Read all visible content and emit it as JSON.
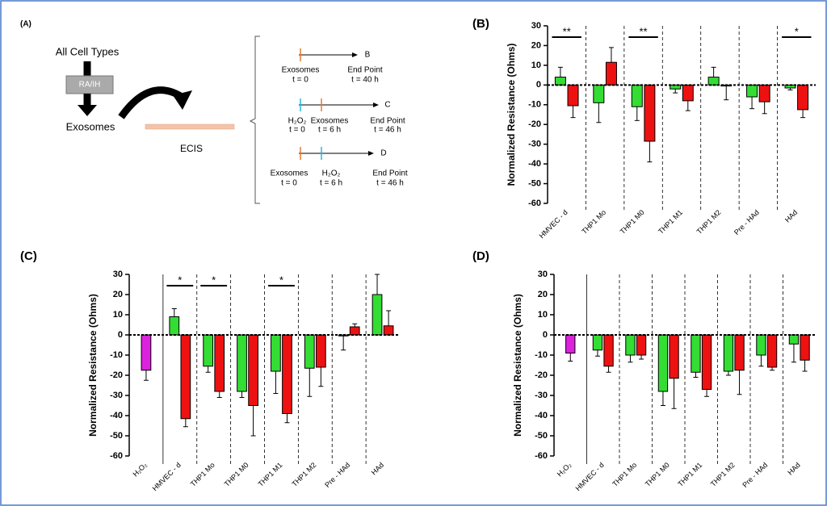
{
  "panel_a": {
    "label": "(A)",
    "source": "All Cell Types",
    "treatment": "RA/IH",
    "product": "Exosomes",
    "assay": "ECIS",
    "timelines": [
      {
        "target": "B",
        "events": [
          {
            "name": "Exosomes",
            "time": "t = 0"
          }
        ],
        "end": "End Point",
        "end_time": "t = 40 h"
      },
      {
        "target": "C",
        "events": [
          {
            "name": "H₂O₂",
            "time": "t = 0"
          },
          {
            "name": "Exosomes",
            "time": "t = 6 h"
          }
        ],
        "end": "End Point",
        "end_time": "t = 46 h"
      },
      {
        "target": "D",
        "events": [
          {
            "name": "Exosomes",
            "time": "t = 0"
          },
          {
            "name": "H₂O₂",
            "time": "t = 6 h"
          }
        ],
        "end": "End Point",
        "end_time": "t = 46 h"
      }
    ]
  },
  "chart_data": [
    {
      "type": "bar",
      "panel_label": "(B)",
      "y_label": "Normalized Resistance (Ohms)",
      "categories": [
        "HMVEC - d",
        "THP1 Mo",
        "THP1 M0",
        "THP1 M1",
        "THP1 M2",
        "Pre - HAd",
        "HAd"
      ],
      "series": [
        {
          "color": "#33dd33",
          "values": [
            4,
            -9,
            -11,
            -2,
            4,
            -6,
            -1.5
          ],
          "errors": [
            5,
            10,
            7,
            2,
            5,
            6,
            1
          ]
        },
        {
          "color": "#ee1111",
          "values": [
            -10.5,
            11.5,
            -28.5,
            -8,
            -0.5,
            -8.5,
            -12.5
          ],
          "errors": [
            6,
            7.5,
            10.5,
            5,
            7,
            6,
            4
          ]
        }
      ],
      "annotations": [
        {
          "text": "**",
          "category": 0
        },
        {
          "text": "**",
          "category": 2
        },
        {
          "text": "*",
          "category": 6
        }
      ],
      "ylim": [
        -60,
        30
      ],
      "yticks": [
        30,
        20,
        10,
        0,
        -10,
        -20,
        -30,
        -40,
        -50,
        -60
      ]
    },
    {
      "type": "bar",
      "panel_label": "(C)",
      "y_label": "Normalized Resistance (Ohms)",
      "categories": [
        "H₂O₂",
        "HMVEC - d",
        "THP1 Mo",
        "THP1 M0",
        "THP1 M1",
        "THP1 M2",
        "Pre - HAd",
        "HAd"
      ],
      "series": [
        {
          "color": "#dd22dd",
          "values": [
            -17.5,
            null,
            null,
            null,
            null,
            null,
            null,
            null
          ],
          "errors": [
            5,
            null,
            null,
            null,
            null,
            null,
            null,
            null
          ]
        },
        {
          "color": "#33dd33",
          "values": [
            null,
            9,
            -15.5,
            -28,
            -18,
            -16.5,
            -0.5,
            20
          ],
          "errors": [
            null,
            4,
            3,
            3,
            11,
            14,
            7,
            10
          ]
        },
        {
          "color": "#ee1111",
          "values": [
            null,
            -41.5,
            -28,
            -35,
            -39,
            -16,
            4,
            4.5
          ],
          "errors": [
            null,
            4,
            3,
            15,
            4.5,
            9.5,
            1.5,
            7.5
          ]
        }
      ],
      "annotations": [
        {
          "text": "*",
          "category": 1
        },
        {
          "text": "*",
          "category": 2
        },
        {
          "text": "*",
          "category": 4
        }
      ],
      "ylim": [
        -60,
        30
      ],
      "yticks": [
        30,
        20,
        10,
        0,
        -10,
        -20,
        -30,
        -40,
        -50,
        -60
      ]
    },
    {
      "type": "bar",
      "panel_label": "(D)",
      "y_label": "Normalized Resistance (Ohms)",
      "categories": [
        "H₂O₂",
        "HMVEC - d",
        "THP1 Mo",
        "THP1 M0",
        "THP1 M1",
        "THP1 M2",
        "Pre - HAd",
        "HAd"
      ],
      "series": [
        {
          "color": "#dd22dd",
          "values": [
            -9,
            null,
            null,
            null,
            null,
            null,
            null,
            null
          ],
          "errors": [
            4,
            null,
            null,
            null,
            null,
            null,
            null,
            null
          ]
        },
        {
          "color": "#33dd33",
          "values": [
            null,
            -7.5,
            -10,
            -28,
            -18.5,
            -18,
            -10,
            -4.5
          ],
          "errors": [
            null,
            3,
            3.5,
            7,
            2.5,
            2,
            5.5,
            9
          ]
        },
        {
          "color": "#ee1111",
          "values": [
            null,
            -15.5,
            -10,
            -21.5,
            -27,
            -17.5,
            -16,
            -12.5
          ],
          "errors": [
            null,
            3,
            2,
            15,
            3.5,
            12,
            1.5,
            5.5
          ]
        }
      ],
      "annotations": [],
      "ylim": [
        -60,
        30
      ],
      "yticks": [
        30,
        20,
        10,
        0,
        -10,
        -20,
        -30,
        -40,
        -50,
        -60
      ]
    }
  ]
}
